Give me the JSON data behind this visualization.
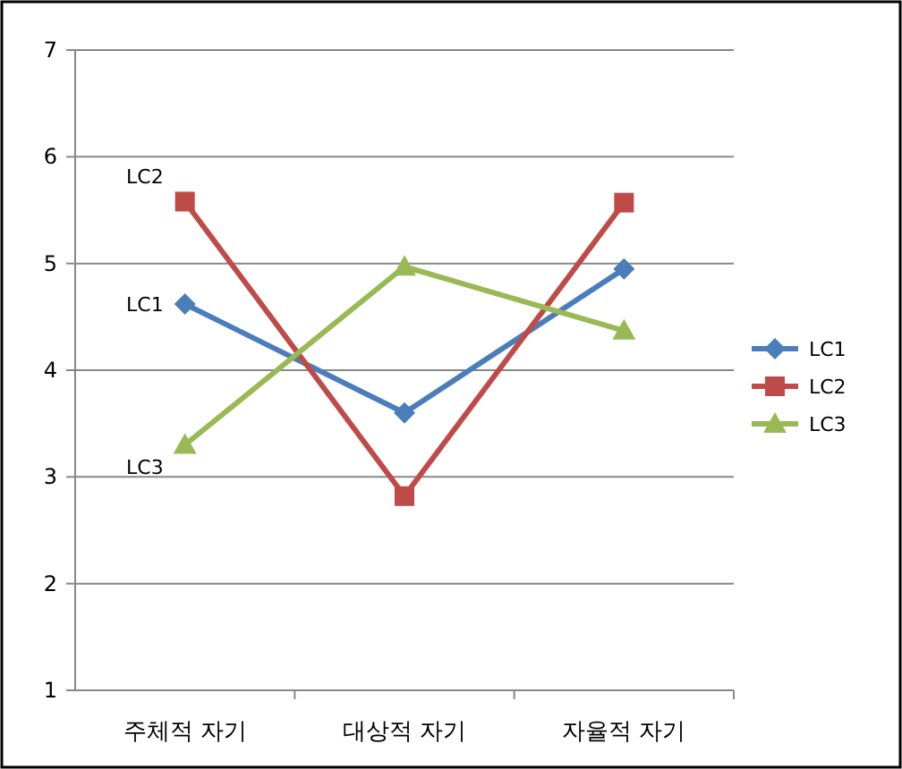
{
  "chart_data": {
    "type": "line",
    "categories": [
      "주체적 자기",
      "대상적 자기",
      "자율적 자기"
    ],
    "series": [
      {
        "name": "LC1",
        "color": "#4a7ebb",
        "marker": "diamond",
        "values": [
          4.62,
          3.6,
          4.95
        ]
      },
      {
        "name": "LC2",
        "color": "#be4b48",
        "marker": "square",
        "values": [
          5.58,
          2.82,
          5.57
        ]
      },
      {
        "name": "LC3",
        "color": "#98b954",
        "marker": "triangle",
        "values": [
          3.3,
          4.97,
          4.37
        ]
      }
    ],
    "ylim": [
      1,
      7
    ],
    "yticks": [
      1,
      2,
      3,
      4,
      5,
      6,
      7
    ],
    "grid": "y",
    "legend": "right"
  }
}
